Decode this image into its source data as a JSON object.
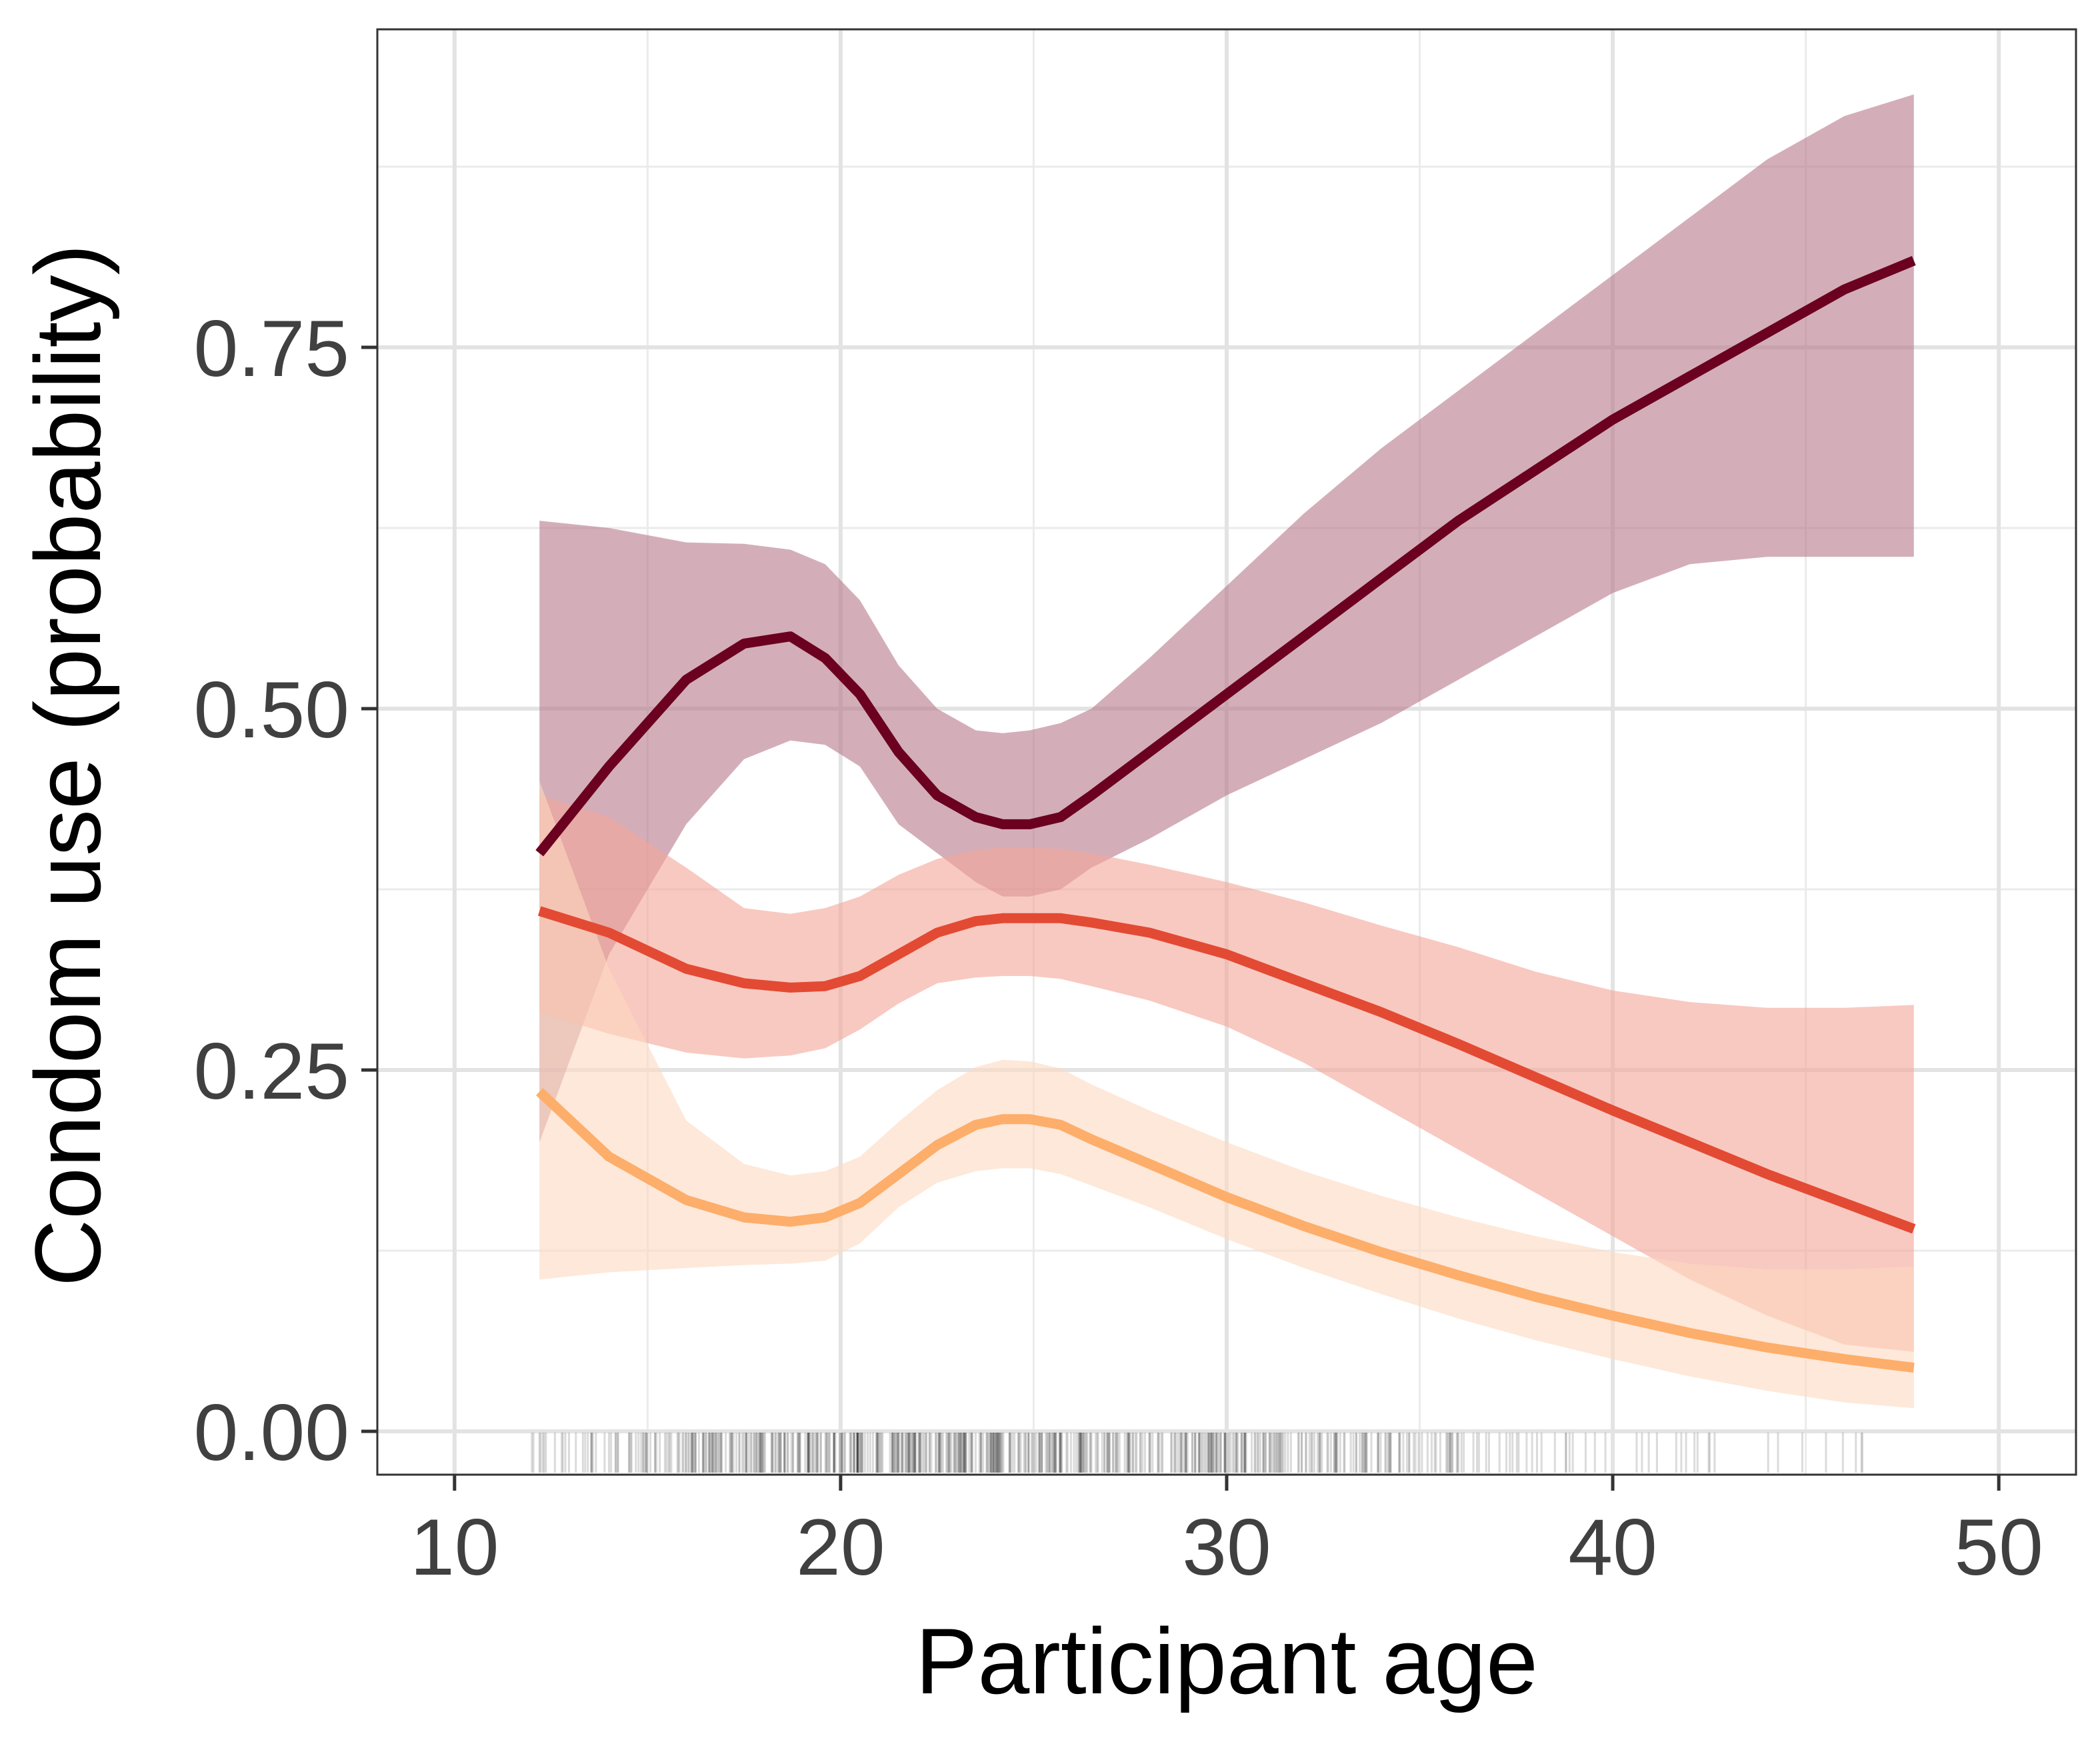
{
  "chart_data": {
    "type": "line",
    "xlabel": "Participant age",
    "ylabel": "Condom use (probability)",
    "xlim": [
      8,
      52
    ],
    "ylim": [
      -0.03,
      0.97
    ],
    "x_ticks": [
      10,
      20,
      30,
      40,
      50
    ],
    "y_ticks": [
      0.0,
      0.25,
      0.5,
      0.75
    ],
    "x_tick_labels": [
      "10",
      "20",
      "30",
      "40",
      "50"
    ],
    "y_tick_labels": [
      "0.00",
      "0.25",
      "0.50",
      "0.75"
    ],
    "x_minor": [
      15,
      25,
      35,
      45
    ],
    "y_minor": [
      0.125,
      0.375,
      0.625,
      0.875
    ],
    "grid": true,
    "legend": "none",
    "rug": {
      "x_min": 12,
      "x_max": 48,
      "peak": 22,
      "count": 700
    },
    "series": [
      {
        "color": "#6b0020",
        "fill": "#b5788a",
        "x": [
          12.2,
          14,
          16,
          17.5,
          18.7,
          19.6,
          20.5,
          21.5,
          22.5,
          23.5,
          24.2,
          24.9,
          25.7,
          26.5,
          28,
          30,
          32,
          34,
          36,
          38,
          40,
          42,
          44,
          46,
          47.8
        ],
        "y": [
          0.4,
          0.46,
          0.52,
          0.545,
          0.55,
          0.535,
          0.51,
          0.47,
          0.44,
          0.425,
          0.42,
          0.42,
          0.425,
          0.44,
          0.47,
          0.51,
          0.55,
          0.59,
          0.63,
          0.665,
          0.7,
          0.73,
          0.76,
          0.79,
          0.81
        ],
        "lower": [
          0.2,
          0.33,
          0.42,
          0.465,
          0.478,
          0.475,
          0.46,
          0.42,
          0.4,
          0.38,
          0.37,
          0.37,
          0.375,
          0.39,
          0.41,
          0.44,
          0.465,
          0.49,
          0.52,
          0.55,
          0.58,
          0.6,
          0.605,
          0.605,
          0.605
        ],
        "upper": [
          0.63,
          0.625,
          0.615,
          0.614,
          0.61,
          0.6,
          0.575,
          0.53,
          0.5,
          0.485,
          0.483,
          0.485,
          0.49,
          0.5,
          0.535,
          0.585,
          0.635,
          0.68,
          0.72,
          0.76,
          0.8,
          0.84,
          0.88,
          0.91,
          0.925
        ]
      },
      {
        "color": "#e34a33",
        "fill": "#f4a598",
        "x": [
          12.2,
          14,
          16,
          17.5,
          18.7,
          19.6,
          20.5,
          21.5,
          22.5,
          23.5,
          24.2,
          24.9,
          25.7,
          26.5,
          28,
          30,
          32,
          34,
          36,
          38,
          40,
          42,
          44,
          46,
          47.8
        ],
        "y": [
          0.36,
          0.345,
          0.32,
          0.31,
          0.307,
          0.308,
          0.315,
          0.33,
          0.345,
          0.353,
          0.355,
          0.355,
          0.355,
          0.352,
          0.345,
          0.33,
          0.31,
          0.29,
          0.268,
          0.245,
          0.222,
          0.2,
          0.178,
          0.158,
          0.14
        ],
        "lower": [
          0.29,
          0.275,
          0.262,
          0.258,
          0.26,
          0.265,
          0.278,
          0.296,
          0.31,
          0.314,
          0.315,
          0.315,
          0.313,
          0.308,
          0.298,
          0.28,
          0.255,
          0.225,
          0.195,
          0.165,
          0.135,
          0.105,
          0.08,
          0.06,
          0.055
        ],
        "upper": [
          0.44,
          0.425,
          0.39,
          0.362,
          0.358,
          0.362,
          0.37,
          0.385,
          0.396,
          0.402,
          0.404,
          0.404,
          0.403,
          0.4,
          0.392,
          0.38,
          0.366,
          0.35,
          0.335,
          0.318,
          0.305,
          0.297,
          0.293,
          0.293,
          0.295
        ]
      },
      {
        "color": "#fdae6b",
        "fill": "#fdd9c0",
        "x": [
          12.2,
          14,
          16,
          17.5,
          18.7,
          19.6,
          20.5,
          21.5,
          22.5,
          23.5,
          24.2,
          24.9,
          25.7,
          26.5,
          28,
          30,
          32,
          34,
          36,
          38,
          40,
          42,
          44,
          46,
          47.8
        ],
        "y": [
          0.235,
          0.19,
          0.16,
          0.148,
          0.145,
          0.148,
          0.158,
          0.178,
          0.198,
          0.212,
          0.216,
          0.216,
          0.212,
          0.202,
          0.185,
          0.162,
          0.142,
          0.124,
          0.108,
          0.093,
          0.08,
          0.068,
          0.058,
          0.05,
          0.044
        ],
        "lower": [
          0.105,
          0.11,
          0.113,
          0.115,
          0.116,
          0.118,
          0.13,
          0.155,
          0.172,
          0.18,
          0.182,
          0.182,
          0.178,
          0.17,
          0.155,
          0.133,
          0.113,
          0.095,
          0.078,
          0.063,
          0.05,
          0.038,
          0.028,
          0.02,
          0.016
        ],
        "upper": [
          0.45,
          0.32,
          0.215,
          0.185,
          0.177,
          0.18,
          0.19,
          0.214,
          0.236,
          0.252,
          0.257,
          0.256,
          0.251,
          0.24,
          0.222,
          0.2,
          0.18,
          0.163,
          0.148,
          0.135,
          0.124,
          0.116,
          0.112,
          0.112,
          0.114
        ]
      }
    ]
  }
}
